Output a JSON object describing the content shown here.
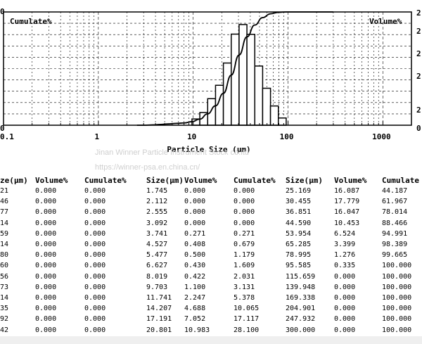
{
  "chart_data": {
    "type": "bar",
    "xscale": "log",
    "xlim": [
      0.1,
      2000
    ],
    "ylim_left": [
      0,
      100
    ],
    "ylim_right": [
      0,
      20
    ],
    "xticks": [
      "0.1",
      "1",
      "10",
      "100",
      "1000"
    ],
    "xlabel": "Particle Size (μm)",
    "left_corner_label": "Cumulate%",
    "right_corner_label": "Volume%",
    "left_axis_top_label": "0",
    "right_axis_labels": [
      "2",
      "2",
      "2",
      "2",
      "2",
      "0"
    ],
    "left_axis_bottom_label": "0",
    "grid": true,
    "bins": [
      {
        "from": 9.703,
        "to": 11.741,
        "volume": 1.1
      },
      {
        "from": 11.741,
        "to": 14.207,
        "volume": 2.247
      },
      {
        "from": 14.207,
        "to": 17.191,
        "volume": 4.688
      },
      {
        "from": 17.191,
        "to": 20.801,
        "volume": 7.052
      },
      {
        "from": 20.801,
        "to": 25.169,
        "volume": 10.983
      },
      {
        "from": 25.169,
        "to": 30.455,
        "volume": 16.087
      },
      {
        "from": 30.455,
        "to": 36.851,
        "volume": 17.779
      },
      {
        "from": 36.851,
        "to": 44.59,
        "volume": 16.047
      },
      {
        "from": 44.59,
        "to": 53.954,
        "volume": 10.453
      },
      {
        "from": 53.954,
        "to": 65.285,
        "volume": 6.524
      },
      {
        "from": 65.285,
        "to": 78.995,
        "volume": 3.399
      },
      {
        "from": 78.995,
        "to": 95.585,
        "volume": 1.276
      }
    ],
    "cumulative_curve": {
      "x": [
        2.555,
        3.092,
        3.741,
        4.527,
        5.477,
        6.627,
        8.019,
        9.703,
        11.741,
        14.207,
        17.191,
        20.801,
        25.169,
        30.455,
        36.851,
        44.59,
        53.954,
        65.285,
        78.995,
        95.585,
        115.659,
        300
      ],
      "y": [
        0,
        0,
        0.271,
        0.679,
        1.179,
        1.609,
        2.031,
        3.131,
        5.378,
        10.065,
        17.117,
        28.1,
        44.187,
        61.967,
        78.014,
        88.466,
        94.991,
        98.389,
        99.665,
        100,
        100,
        100
      ]
    }
  },
  "watermark": {
    "line1": "Jinan Winner Particle Instrument Stock co.ltd",
    "line2": "https://winner-psa.en.china.cn/"
  },
  "table": {
    "headers": [
      "ze(μm)",
      "Volume%",
      "Cumulate%",
      "Size(μm)",
      "Volume%",
      "Cumulate%",
      "Size(μm)",
      "Volume%",
      "Cumulate"
    ],
    "rows": [
      [
        "21",
        "0.000",
        "0.000",
        "1.745",
        "0.000",
        "0.000",
        "25.169",
        "16.087",
        "44.187"
      ],
      [
        "46",
        "0.000",
        "0.000",
        "2.112",
        "0.000",
        "0.000",
        "30.455",
        "17.779",
        "61.967"
      ],
      [
        "77",
        "0.000",
        "0.000",
        "2.555",
        "0.000",
        "0.000",
        "36.851",
        "16.047",
        "78.014"
      ],
      [
        "14",
        "0.000",
        "0.000",
        "3.092",
        "0.000",
        "0.000",
        "44.590",
        "10.453",
        "88.466"
      ],
      [
        "59",
        "0.000",
        "0.000",
        "3.741",
        "0.271",
        "0.271",
        "53.954",
        "6.524",
        "94.991"
      ],
      [
        "14",
        "0.000",
        "0.000",
        "4.527",
        "0.408",
        "0.679",
        "65.285",
        "3.399",
        "98.389"
      ],
      [
        "80",
        "0.000",
        "0.000",
        "5.477",
        "0.500",
        "1.179",
        "78.995",
        "1.276",
        "99.665"
      ],
      [
        "60",
        "0.000",
        "0.000",
        "6.627",
        "0.430",
        "1.609",
        "95.585",
        "0.335",
        "100.000"
      ],
      [
        "56",
        "0.000",
        "0.000",
        "8.019",
        "0.422",
        "2.031",
        "115.659",
        "0.000",
        "100.000"
      ],
      [
        "73",
        "0.000",
        "0.000",
        "9.703",
        "1.100",
        "3.131",
        "139.948",
        "0.000",
        "100.000"
      ],
      [
        "14",
        "0.000",
        "0.000",
        "11.741",
        "2.247",
        "5.378",
        "169.338",
        "0.000",
        "100.000"
      ],
      [
        "35",
        "0.000",
        "0.000",
        "14.207",
        "4.688",
        "10.065",
        "204.901",
        "0.000",
        "100.000"
      ],
      [
        "92",
        "0.000",
        "0.000",
        "17.191",
        "7.052",
        "17.117",
        "247.932",
        "0.000",
        "100.000"
      ],
      [
        "42",
        "0.000",
        "0.000",
        "20.801",
        "10.983",
        "28.100",
        "300.000",
        "0.000",
        "100.000"
      ]
    ]
  }
}
